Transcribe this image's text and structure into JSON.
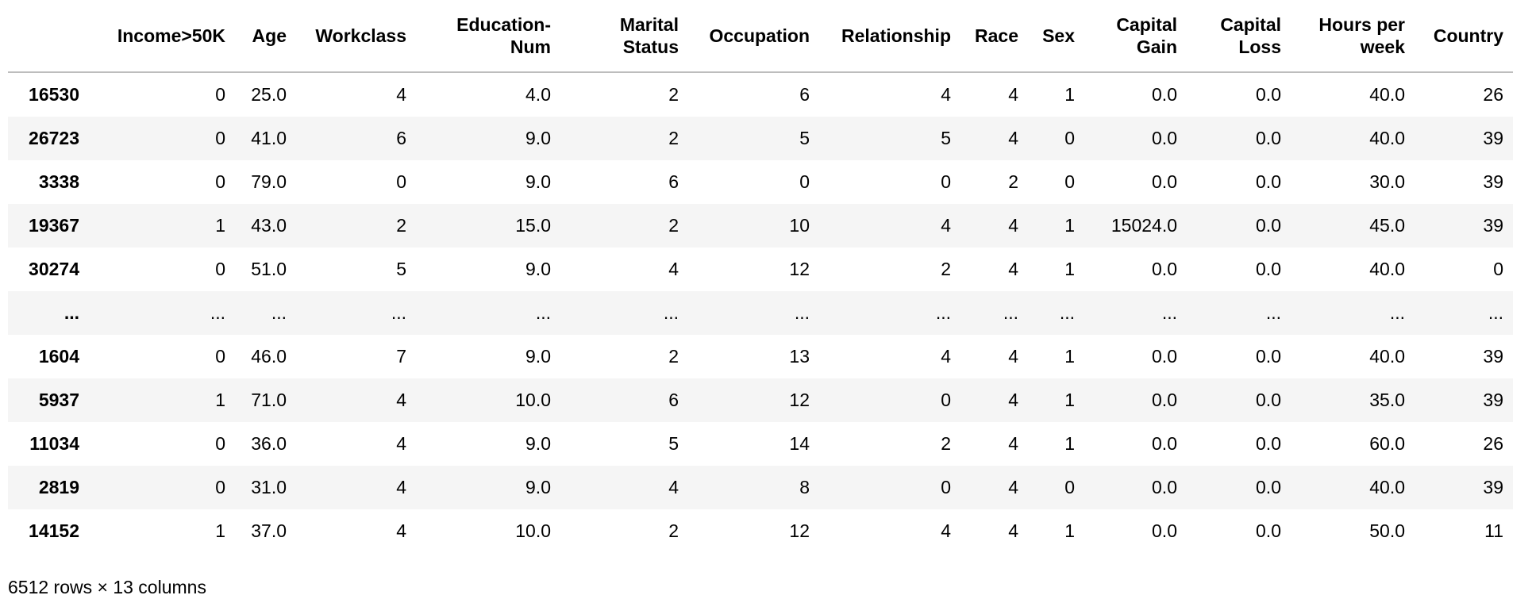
{
  "table": {
    "columns": [
      "",
      "Income>50K",
      "Age",
      "Workclass",
      "Education-Num",
      "Marital Status",
      "Occupation",
      "Relationship",
      "Race",
      "Sex",
      "Capital Gain",
      "Capital Loss",
      "Hours per week",
      "Country"
    ],
    "rows": [
      [
        "16530",
        "0",
        "25.0",
        "4",
        "4.0",
        "2",
        "6",
        "4",
        "4",
        "1",
        "0.0",
        "0.0",
        "40.0",
        "26"
      ],
      [
        "26723",
        "0",
        "41.0",
        "6",
        "9.0",
        "2",
        "5",
        "5",
        "4",
        "0",
        "0.0",
        "0.0",
        "40.0",
        "39"
      ],
      [
        "3338",
        "0",
        "79.0",
        "0",
        "9.0",
        "6",
        "0",
        "0",
        "2",
        "0",
        "0.0",
        "0.0",
        "30.0",
        "39"
      ],
      [
        "19367",
        "1",
        "43.0",
        "2",
        "15.0",
        "2",
        "10",
        "4",
        "4",
        "1",
        "15024.0",
        "0.0",
        "45.0",
        "39"
      ],
      [
        "30274",
        "0",
        "51.0",
        "5",
        "9.0",
        "4",
        "12",
        "2",
        "4",
        "1",
        "0.0",
        "0.0",
        "40.0",
        "0"
      ],
      [
        "...",
        "...",
        "...",
        "...",
        "...",
        "...",
        "...",
        "...",
        "...",
        "...",
        "...",
        "...",
        "...",
        "..."
      ],
      [
        "1604",
        "0",
        "46.0",
        "7",
        "9.0",
        "2",
        "13",
        "4",
        "4",
        "1",
        "0.0",
        "0.0",
        "40.0",
        "39"
      ],
      [
        "5937",
        "1",
        "71.0",
        "4",
        "10.0",
        "6",
        "12",
        "0",
        "4",
        "1",
        "0.0",
        "0.0",
        "35.0",
        "39"
      ],
      [
        "11034",
        "0",
        "36.0",
        "4",
        "9.0",
        "5",
        "14",
        "2",
        "4",
        "1",
        "0.0",
        "0.0",
        "60.0",
        "26"
      ],
      [
        "2819",
        "0",
        "31.0",
        "4",
        "9.0",
        "4",
        "8",
        "0",
        "4",
        "0",
        "0.0",
        "0.0",
        "40.0",
        "39"
      ],
      [
        "14152",
        "1",
        "37.0",
        "4",
        "10.0",
        "2",
        "12",
        "4",
        "4",
        "1",
        "0.0",
        "0.0",
        "50.0",
        "11"
      ]
    ]
  },
  "footer": "6512 rows × 13 columns"
}
